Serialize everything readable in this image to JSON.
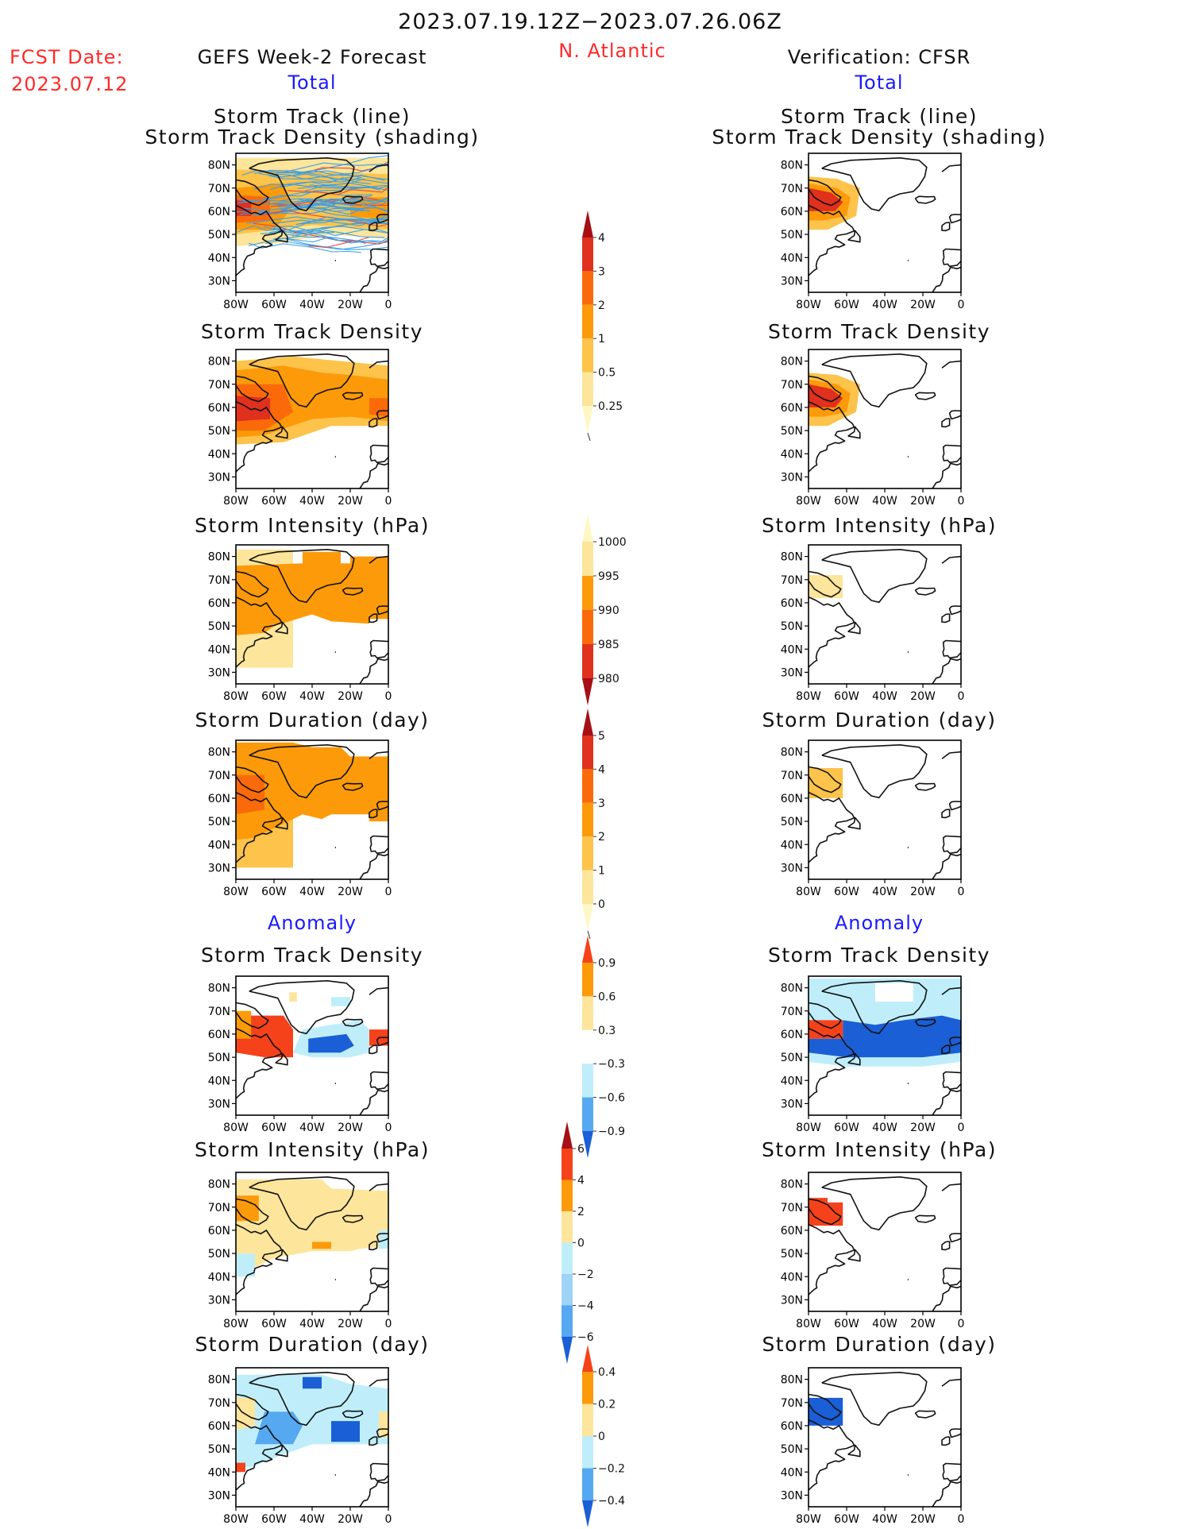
{
  "header": {
    "period": "2023.07.19.12Z−2023.07.26.06Z",
    "fcst_label": "FCST Date:",
    "fcst_date": "2023.07.12",
    "left_title": "GEFS Week-2 Forecast",
    "region": "N. Atlantic",
    "right_title": "Verification: CFSR",
    "left_total": "Total",
    "right_total": "Total",
    "left_anomaly": "Anomaly",
    "right_anomaly": "Anomaly"
  },
  "panel_titles": {
    "track_line": "Storm Track (line)",
    "track_density_shading": "Storm Track Density (shading)",
    "density": "Storm Track Density",
    "intensity": "Storm Intensity (hPa)",
    "duration": "Storm Duration (day)"
  },
  "axes": {
    "lat_ticks": [
      "80N",
      "70N",
      "60N",
      "50N",
      "40N",
      "30N"
    ],
    "lon_ticks": [
      "80W",
      "60W",
      "40W",
      "20W",
      "0"
    ]
  },
  "colorbars": [
    {
      "id": "total_density",
      "labels": [
        "4",
        "3",
        "2",
        "1",
        "0.5",
        "0.25"
      ],
      "colors": [
        "#a50f15",
        "#e0301e",
        "#fb6a0a",
        "#fd9a0a",
        "#fdc34a",
        "#fde59b",
        "#fff8c4"
      ]
    },
    {
      "id": "total_intensity",
      "labels": [
        "1000",
        "995",
        "990",
        "985",
        "980"
      ],
      "colors": [
        "#fff8c4",
        "#fde59b",
        "#fd9a0a",
        "#fb6a0a",
        "#e0301e",
        "#a50f15"
      ]
    },
    {
      "id": "total_duration",
      "labels": [
        "5",
        "4",
        "3",
        "2",
        "1",
        "0"
      ],
      "colors": [
        "#a50f15",
        "#e0301e",
        "#fb6a0a",
        "#fd9a0a",
        "#fdc34a",
        "#fde59b",
        "#fff8c4"
      ]
    },
    {
      "id": "anom_density",
      "labels": [
        "0.9",
        "0.6",
        "0.3",
        "−0.3",
        "−0.6",
        "−0.9"
      ],
      "colors": [
        "#f5421b",
        "#fd9a0a",
        "#fde59b",
        "#ffffff",
        "#bfeefa",
        "#56a8f0",
        "#1a5fd6"
      ]
    },
    {
      "id": "anom_intensity",
      "labels": [
        "6",
        "4",
        "2",
        "0",
        "−2",
        "−4",
        "−6"
      ],
      "colors": [
        "#a50f15",
        "#f5421b",
        "#fd9a0a",
        "#fde59b",
        "#bfeefa",
        "#9fd4f7",
        "#56a8f0",
        "#1a5fd6"
      ]
    },
    {
      "id": "anom_duration",
      "labels": [
        "0.4",
        "0.2",
        "0",
        "−0.2",
        "−0.4"
      ],
      "colors": [
        "#f5421b",
        "#fd9a0a",
        "#fde59b",
        "#bfeefa",
        "#56a8f0",
        "#1a5fd6"
      ]
    }
  ],
  "chart_data": [
    {
      "type": "heatmap",
      "panel": "forecast_track_line_density",
      "column": "GEFS Week-2 Forecast",
      "title": "Storm Track (line) Storm Track Density (shading)",
      "xlim": [
        -80,
        0
      ],
      "ylim": [
        25,
        85
      ]
    },
    {
      "type": "heatmap",
      "panel": "forecast_density",
      "column": "GEFS Week-2 Forecast",
      "title": "Storm Track Density",
      "xlim": [
        -80,
        0
      ],
      "ylim": [
        25,
        85
      ]
    },
    {
      "type": "heatmap",
      "panel": "forecast_intensity",
      "column": "GEFS Week-2 Forecast",
      "title": "Storm Intensity (hPa)",
      "xlim": [
        -80,
        0
      ],
      "ylim": [
        25,
        85
      ]
    },
    {
      "type": "heatmap",
      "panel": "forecast_duration",
      "column": "GEFS Week-2 Forecast",
      "title": "Storm Duration (day)",
      "xlim": [
        -80,
        0
      ],
      "ylim": [
        25,
        85
      ]
    },
    {
      "type": "heatmap",
      "panel": "forecast_anom_density",
      "column": "GEFS Week-2 Forecast",
      "title": "Anomaly Storm Track Density",
      "xlim": [
        -80,
        0
      ],
      "ylim": [
        25,
        85
      ]
    },
    {
      "type": "heatmap",
      "panel": "forecast_anom_intensity",
      "column": "GEFS Week-2 Forecast",
      "title": "Anomaly Storm Intensity (hPa)",
      "xlim": [
        -80,
        0
      ],
      "ylim": [
        25,
        85
      ]
    },
    {
      "type": "heatmap",
      "panel": "forecast_anom_duration",
      "column": "GEFS Week-2 Forecast",
      "title": "Anomaly Storm Duration (day)",
      "xlim": [
        -80,
        0
      ],
      "ylim": [
        25,
        85
      ]
    },
    {
      "type": "heatmap",
      "panel": "verif_track_line_density",
      "column": "Verification: CFSR",
      "title": "Storm Track (line) Storm Track Density (shading)",
      "xlim": [
        -80,
        0
      ],
      "ylim": [
        25,
        85
      ]
    },
    {
      "type": "heatmap",
      "panel": "verif_density",
      "column": "Verification: CFSR",
      "title": "Storm Track Density",
      "xlim": [
        -80,
        0
      ],
      "ylim": [
        25,
        85
      ]
    },
    {
      "type": "heatmap",
      "panel": "verif_intensity",
      "column": "Verification: CFSR",
      "title": "Storm Intensity (hPa)",
      "xlim": [
        -80,
        0
      ],
      "ylim": [
        25,
        85
      ]
    },
    {
      "type": "heatmap",
      "panel": "verif_duration",
      "column": "Verification: CFSR",
      "title": "Storm Duration (day)",
      "xlim": [
        -80,
        0
      ],
      "ylim": [
        25,
        85
      ]
    },
    {
      "type": "heatmap",
      "panel": "verif_anom_density",
      "column": "Verification: CFSR",
      "title": "Anomaly Storm Track Density",
      "xlim": [
        -80,
        0
      ],
      "ylim": [
        25,
        85
      ]
    },
    {
      "type": "heatmap",
      "panel": "verif_anom_intensity",
      "column": "Verification: CFSR",
      "title": "Anomaly Storm Intensity (hPa)",
      "xlim": [
        -80,
        0
      ],
      "ylim": [
        25,
        85
      ]
    },
    {
      "type": "heatmap",
      "panel": "verif_anom_duration",
      "column": "Verification: CFSR",
      "title": "Anomaly Storm Duration (day)",
      "xlim": [
        -80,
        0
      ],
      "ylim": [
        25,
        85
      ]
    }
  ]
}
